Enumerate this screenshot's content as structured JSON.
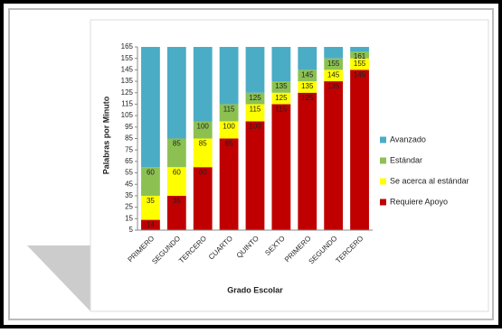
{
  "chart_data": {
    "type": "threshold-bar",
    "y_label": "Palabras por Minuto",
    "x_label": "Grado Escolar",
    "categories": [
      "PRIMERO",
      "SEGUNDO",
      "TERCERO",
      "CUARTO",
      "QUINTO",
      "SEXTO",
      "PRIMERO",
      "SEGUNDO",
      "TERCERO"
    ],
    "series": [
      {
        "name": "Avanzado",
        "color": "#4bacc6",
        "data_labels": false,
        "values": [
          165,
          165,
          165,
          165,
          165,
          165,
          165,
          165,
          165
        ]
      },
      {
        "name": "Estándar",
        "color": "#8cc152",
        "data_labels": true,
        "values": [
          60,
          85,
          100,
          115,
          125,
          135,
          145,
          155,
          161
        ]
      },
      {
        "name": "Se acerca al estándar",
        "color": "#ffff00",
        "data_labels": true,
        "values": [
          35,
          60,
          85,
          100,
          115,
          125,
          135,
          145,
          155
        ]
      },
      {
        "name": "Requiere Apoyo",
        "color": "#c00000",
        "data_labels": true,
        "values": [
          14,
          35,
          60,
          85,
          100,
          115,
          125,
          135,
          145
        ]
      }
    ],
    "ylim": [
      5,
      165
    ],
    "yticks": [
      5,
      15,
      25,
      35,
      45,
      55,
      65,
      75,
      85,
      95,
      105,
      115,
      125,
      135,
      145,
      155,
      165
    ],
    "legend": "right"
  }
}
